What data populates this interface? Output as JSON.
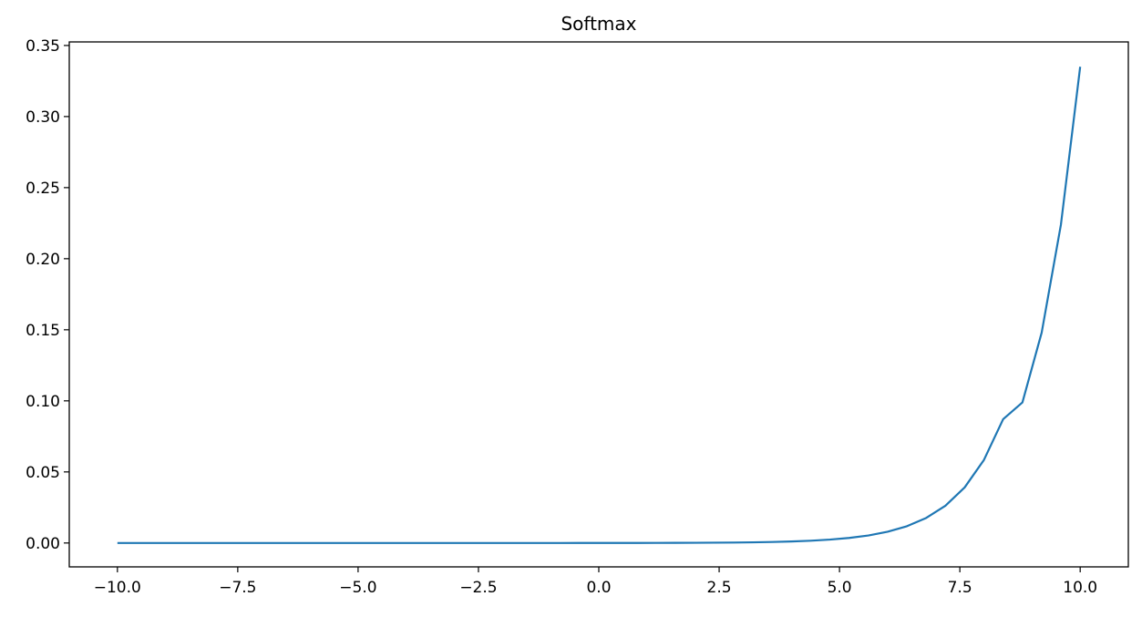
{
  "chart_data": {
    "type": "line",
    "title": "Softmax",
    "xlabel": "",
    "ylabel": "",
    "xlim": [
      -11.0,
      11.0
    ],
    "ylim": [
      -0.0168,
      0.3525
    ],
    "x_ticks": [
      -10.0,
      -7.5,
      -5.0,
      -2.5,
      0.0,
      2.5,
      5.0,
      7.5,
      10.0
    ],
    "x_tick_labels": [
      "−10.0",
      "−7.5",
      "−5.0",
      "−2.5",
      "0.0",
      "2.5",
      "5.0",
      "7.5",
      "10.0"
    ],
    "y_ticks": [
      0.0,
      0.05,
      0.1,
      0.15,
      0.2,
      0.25,
      0.3,
      0.35
    ],
    "y_tick_labels": [
      "0.00",
      "0.05",
      "0.10",
      "0.15",
      "0.20",
      "0.25",
      "0.30",
      "0.35"
    ],
    "grid": false,
    "series": [
      {
        "color": "#1f77b4",
        "x": [
          -10.0,
          -9.6,
          -9.2,
          -8.8,
          -8.4,
          -8.0,
          -7.6,
          -7.2,
          -6.8,
          -6.4,
          -6.0,
          -5.6,
          -5.2,
          -4.8,
          -4.4,
          -4.0,
          -3.6,
          -3.2,
          -2.8,
          -2.4,
          -2.0,
          -1.6,
          -1.2,
          -0.8,
          -0.4,
          0.0,
          0.4,
          0.8,
          1.2,
          1.6,
          2.0,
          2.4,
          2.8,
          3.2,
          3.6,
          4.0,
          4.4,
          4.8,
          5.2,
          5.6,
          6.0,
          6.4,
          6.8,
          7.2,
          7.6,
          8.0,
          8.4,
          8.8,
          9.2,
          9.6,
          10.0
        ],
        "y": [
          0.0,
          0.0,
          0.0,
          0.0,
          0.0,
          0.0,
          0.0,
          0.0,
          0.0,
          0.0,
          0.0,
          0.0,
          0.0,
          0.0,
          0.0,
          0.0,
          0.0,
          0.0,
          0.0,
          0.0,
          0.0,
          0.0,
          0.0,
          0.0,
          1e-05,
          2e-05,
          3e-05,
          5e-05,
          7e-05,
          0.0001,
          0.00015,
          0.00022,
          0.00032,
          0.00048,
          0.00072,
          0.00107,
          0.0016,
          0.00238,
          0.00355,
          0.0053,
          0.0079,
          0.0118,
          0.0176,
          0.0262,
          0.0391,
          0.0584,
          0.0871,
          0.0989,
          0.148,
          0.224,
          0.335
        ]
      }
    ]
  }
}
